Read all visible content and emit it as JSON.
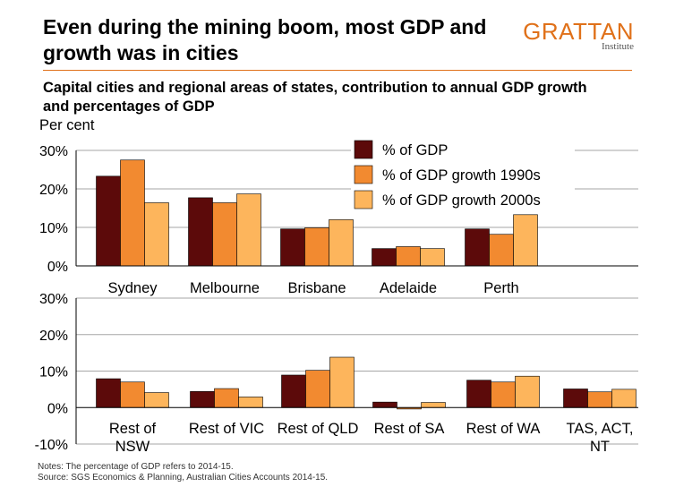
{
  "header": {
    "title": "Even during the mining boom, most GDP and growth was in cities",
    "logo_main": "GRATTAN",
    "logo_sub": "Institute"
  },
  "subtitle": "Capital cities and regional areas of states, contribution to annual GDP growth and percentages of GDP",
  "unit_label": "Per cent",
  "notes": {
    "note": "Notes: The percentage of GDP refers to 2014-15.",
    "source": "Source: SGS Economics & Planning, Australian Cities Accounts 2014-15."
  },
  "colors": {
    "gdp": "#5C0A0A",
    "growth_1990s": "#F28A30",
    "growth_2000s": "#FDB55C",
    "grid": "#A6A6A6",
    "axis": "#000000"
  },
  "chart_data": [
    {
      "type": "bar",
      "categories": [
        "Sydney",
        "Melbourne",
        "Brisbane",
        "Adelaide",
        "Perth"
      ],
      "series": [
        {
          "name": "% of GDP",
          "values": [
            23.3,
            17.7,
            9.6,
            4.5,
            9.6
          ]
        },
        {
          "name": "% of GDP growth 1990s",
          "values": [
            27.5,
            16.4,
            9.9,
            5.0,
            8.2
          ]
        },
        {
          "name": "% of GDP growth 2000s",
          "values": [
            16.4,
            18.7,
            12.0,
            4.5,
            13.3
          ]
        }
      ],
      "yticks": [
        "30%",
        "20%",
        "10%",
        "0%"
      ],
      "ylim": [
        0,
        30
      ],
      "legend": "top-right",
      "grid": true
    },
    {
      "type": "bar",
      "categories": [
        "Rest of NSW",
        "Rest of VIC",
        "Rest of QLD",
        "Rest of SA",
        "Rest of WA",
        "TAS, ACT, NT"
      ],
      "series": [
        {
          "name": "% of GDP",
          "values": [
            7.9,
            4.4,
            8.9,
            1.5,
            7.5,
            5.1
          ]
        },
        {
          "name": "% of GDP growth 1990s",
          "values": [
            7.0,
            5.2,
            10.2,
            -0.4,
            7.0,
            4.3
          ]
        },
        {
          "name": "% of GDP growth 2000s",
          "values": [
            4.1,
            2.9,
            13.8,
            1.4,
            8.6,
            5.0
          ]
        }
      ],
      "yticks": [
        "30%",
        "20%",
        "10%",
        "0%",
        "-10%"
      ],
      "ylim": [
        -10,
        30
      ],
      "grid": true
    }
  ]
}
